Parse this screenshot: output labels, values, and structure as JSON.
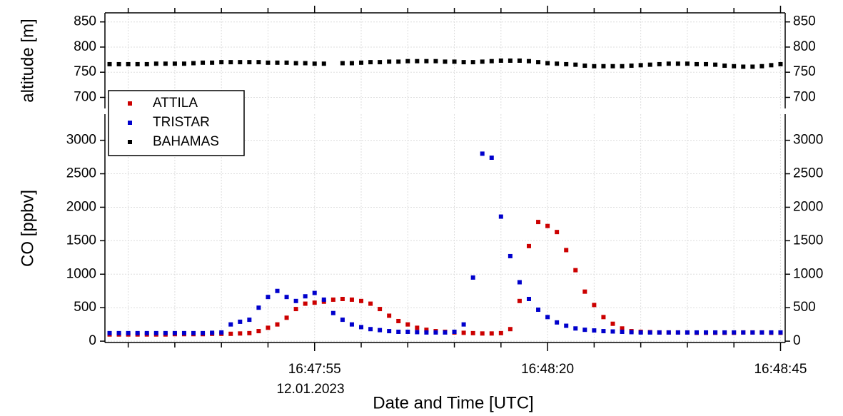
{
  "chart_data": {
    "type": "scatter",
    "xlabel": "Date and Time [UTC]",
    "date_label": "12.01.2023",
    "x": [
      "16:47:33",
      "16:47:34",
      "16:47:35",
      "16:47:36",
      "16:47:37",
      "16:47:38",
      "16:47:39",
      "16:47:40",
      "16:47:41",
      "16:47:42",
      "16:47:43",
      "16:47:44",
      "16:47:45",
      "16:47:46",
      "16:47:47",
      "16:47:48",
      "16:47:49",
      "16:47:50",
      "16:47:51",
      "16:47:52",
      "16:47:53",
      "16:47:54",
      "16:47:55",
      "16:47:56",
      "16:47:57",
      "16:47:58",
      "16:47:59",
      "16:48:00",
      "16:48:01",
      "16:48:02",
      "16:48:03",
      "16:48:04",
      "16:48:05",
      "16:48:06",
      "16:48:07",
      "16:48:08",
      "16:48:09",
      "16:48:10",
      "16:48:11",
      "16:48:12",
      "16:48:13",
      "16:48:14",
      "16:48:15",
      "16:48:16",
      "16:48:17",
      "16:48:18",
      "16:48:19",
      "16:48:20",
      "16:48:21",
      "16:48:22",
      "16:48:23",
      "16:48:24",
      "16:48:25",
      "16:48:26",
      "16:48:27",
      "16:48:28",
      "16:48:29",
      "16:48:30",
      "16:48:31",
      "16:48:32",
      "16:48:33",
      "16:48:34",
      "16:48:35",
      "16:48:36",
      "16:48:37",
      "16:48:38",
      "16:48:39",
      "16:48:40",
      "16:48:41",
      "16:48:42",
      "16:48:43",
      "16:48:44",
      "16:48:45"
    ],
    "xlim": [
      "16:47:32.5",
      "16:48:45.5"
    ],
    "xticks": [
      "16:47:55",
      "16:48:20",
      "16:48:45"
    ],
    "x_minor_ticks": [
      "16:47:35",
      "16:47:40",
      "16:47:45",
      "16:47:50",
      "16:48:00",
      "16:48:05",
      "16:48:10",
      "16:48:15",
      "16:48:25",
      "16:48:30",
      "16:48:35",
      "16:48:40"
    ],
    "grid": true,
    "panels": [
      {
        "ylabel": "altitude [m]",
        "ylim": [
          678,
          868
        ],
        "yticks": [
          700,
          750,
          800,
          850
        ],
        "series": [
          {
            "name": "BAHAMAS",
            "color": "#000000",
            "values": [
              766,
              766,
              766,
              766,
              766,
              767,
              767,
              767,
              767,
              768,
              769,
              769,
              770,
              770,
              770,
              770,
              770,
              769,
              769,
              769,
              768,
              768,
              767,
              767,
              null,
              768,
              768,
              769,
              770,
              770,
              771,
              771,
              772,
              772,
              772,
              772,
              771,
              771,
              770,
              770,
              771,
              772,
              773,
              773,
              773,
              772,
              770,
              768,
              767,
              766,
              765,
              763,
              762,
              762,
              762,
              762,
              763,
              764,
              765,
              766,
              767,
              767,
              767,
              766,
              766,
              765,
              763,
              762,
              761,
              761,
              762,
              764,
              766
            ]
          }
        ]
      },
      {
        "ylabel": "CO [ppbv]",
        "ylim": [
          -20,
          3390
        ],
        "yticks": [
          0,
          500,
          1000,
          1500,
          2000,
          2500,
          3000
        ],
        "series": [
          {
            "name": "ATTILA",
            "color": "#cc0000",
            "values": [
              100,
              100,
              100,
              100,
              100,
              100,
              100,
              105,
              105,
              105,
              105,
              110,
              110,
              110,
              115,
              120,
              150,
              200,
              250,
              350,
              480,
              560,
              575,
              590,
              620,
              630,
              620,
              600,
              560,
              480,
              380,
              300,
              250,
              200,
              170,
              150,
              140,
              130,
              125,
              120,
              115,
              115,
              120,
              180,
              600,
              1420,
              1780,
              1720,
              1630,
              1360,
              1060,
              740,
              540,
              360,
              260,
              190,
              150,
              140,
              135,
              130,
              130,
              130,
              130,
              125,
              125,
              125,
              125,
              125,
              130,
              130,
              130,
              125,
              125
            ]
          },
          {
            "name": "TRISTAR",
            "color": "#0000cc",
            "values": [
              120,
              120,
              120,
              120,
              120,
              120,
              120,
              120,
              120,
              120,
              120,
              125,
              130,
              250,
              290,
              320,
              500,
              660,
              750,
              660,
              600,
              670,
              720,
              620,
              420,
              320,
              250,
              210,
              180,
              165,
              150,
              140,
              140,
              135,
              130,
              130,
              130,
              140,
              250,
              950,
              2800,
              2740,
              1860,
              1270,
              880,
              630,
              470,
              360,
              280,
              230,
              190,
              170,
              160,
              150,
              145,
              140,
              135,
              130,
              130,
              130,
              130,
              130,
              130,
              130,
              130,
              130,
              130,
              130,
              130,
              130,
              130,
              130,
              130
            ]
          }
        ]
      }
    ]
  }
}
